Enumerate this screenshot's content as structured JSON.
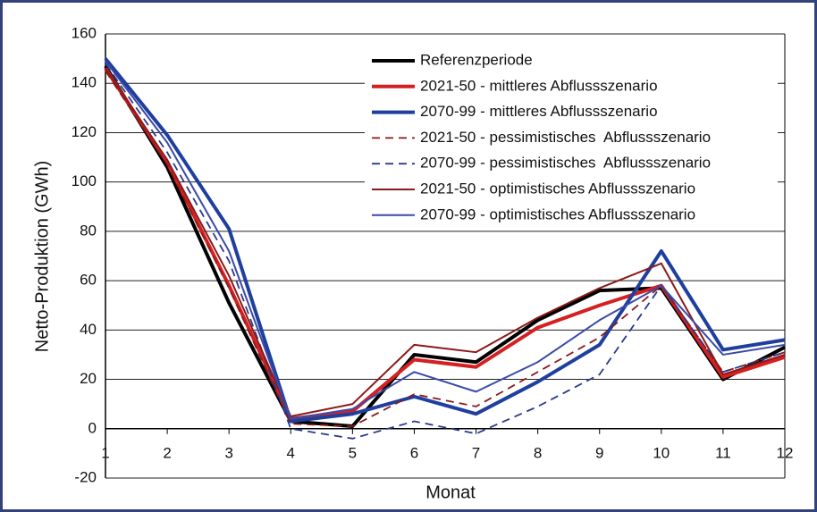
{
  "chart_data": {
    "type": "line",
    "xlabel": "Monat",
    "ylabel": "Netto-Produktion (GWh)",
    "x": [
      1,
      2,
      3,
      4,
      5,
      6,
      7,
      8,
      9,
      10,
      11,
      12
    ],
    "xlim": [
      1,
      12
    ],
    "xticks": [
      1,
      2,
      3,
      4,
      5,
      6,
      7,
      8,
      9,
      10,
      11,
      12
    ],
    "ylim": [
      -20,
      160
    ],
    "yticks": [
      -20,
      0,
      20,
      40,
      60,
      80,
      100,
      120,
      140,
      160
    ],
    "grid": true,
    "legend": "upper right",
    "series": [
      {
        "name": "Referenzperiode",
        "color": "#000000",
        "width": 4,
        "style": "solid",
        "values": [
          147,
          106,
          51,
          3,
          1,
          30,
          27,
          44,
          56,
          57,
          20,
          33
        ]
      },
      {
        "name": "2021-50 - mittleres Abflussszenario",
        "color": "#d42020",
        "width": 4,
        "style": "solid",
        "values": [
          146,
          108,
          58,
          4,
          7,
          28,
          25,
          41,
          50,
          58,
          21,
          29
        ]
      },
      {
        "name": "2070-99 - mittleres Abflussszenario",
        "color": "#1f3f9f",
        "width": 4,
        "style": "solid",
        "values": [
          150,
          119,
          81,
          3,
          6,
          13,
          6,
          19,
          34,
          72,
          32,
          36
        ]
      },
      {
        "name": "2021-50 - pessimistisches  Abflussszenario",
        "color": "#8b1a1a",
        "width": 1.8,
        "style": "dashed",
        "values": [
          145,
          107,
          57,
          2,
          1,
          14,
          9,
          23,
          37,
          58,
          23,
          31
        ]
      },
      {
        "name": "2070-99 - pessimistisches  Abflussszenario",
        "color": "#2a3a8f",
        "width": 1.8,
        "style": "dashed",
        "values": [
          148,
          112,
          68,
          0,
          -4,
          3,
          -2,
          9,
          22,
          58,
          23,
          31
        ]
      },
      {
        "name": "2021-50 - optimistisches Abflussszenario",
        "color": "#8b1a1a",
        "width": 2,
        "style": "solid",
        "values": [
          146,
          109,
          62,
          5,
          10,
          34,
          31,
          45,
          57,
          67,
          22,
          30
        ]
      },
      {
        "name": "2070-99 - optimistisches Abflussszenario",
        "color": "#3a4aa8",
        "width": 2,
        "style": "solid",
        "values": [
          149,
          116,
          72,
          4,
          8,
          23,
          15,
          27,
          44,
          58,
          30,
          34
        ]
      }
    ]
  }
}
